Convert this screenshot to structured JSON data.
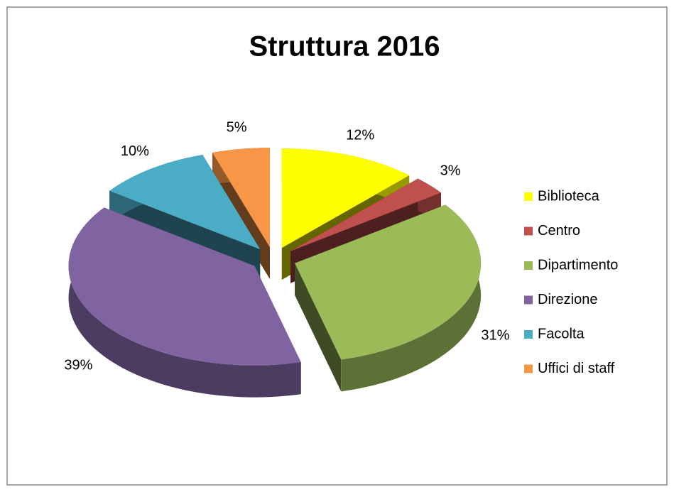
{
  "chart_data": {
    "type": "pie",
    "title": "Struttura 2016",
    "categories": [
      "Biblioteca",
      "Centro",
      "Dipartimento",
      "Direzione",
      "Facolta",
      "Uffici di staff"
    ],
    "values": [
      12,
      3,
      31,
      39,
      10,
      5
    ],
    "value_labels": [
      "12%",
      "3%",
      "31%",
      "39%",
      "10%",
      "5%"
    ],
    "colors": [
      "#ffff00",
      "#c0504d",
      "#9bbb59",
      "#8064a2",
      "#4bacc6",
      "#f79646"
    ],
    "legend": "right"
  }
}
